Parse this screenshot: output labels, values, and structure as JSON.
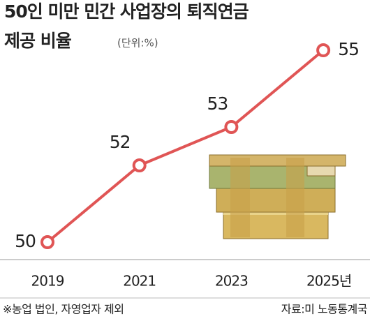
{
  "chart_data": {
    "type": "line",
    "title": [
      "50인 미만 민간 사업장의 퇴직연금",
      "제공 비율"
    ],
    "subtitle": "(단위:%)",
    "categories": [
      "2019",
      "2021",
      "2023",
      "2025년"
    ],
    "values": [
      50,
      52,
      53,
      55
    ],
    "color": "#e05555",
    "note": "※농업 법인, 자영업자 제외",
    "source": "자료:미 노동통계국"
  }
}
